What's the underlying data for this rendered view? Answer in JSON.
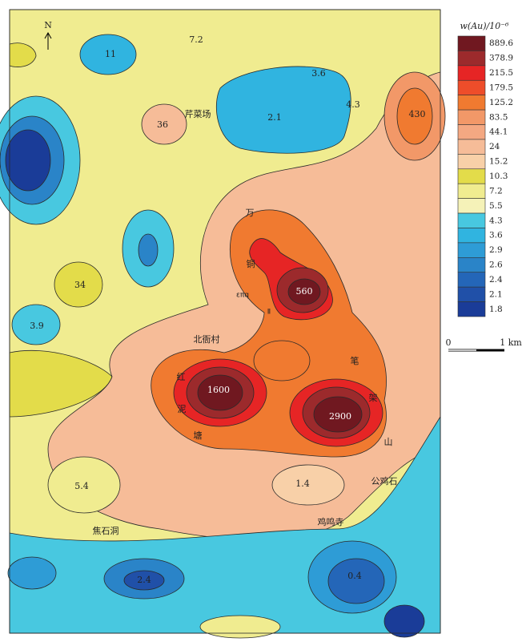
{
  "legend": {
    "title": "w(Au)/10⁻⁶",
    "items": [
      {
        "label": "889.6",
        "color": "#701820"
      },
      {
        "label": "378.9",
        "color": "#9c2a2c"
      },
      {
        "label": "215.5",
        "color": "#e62525"
      },
      {
        "label": "179.5",
        "color": "#ee4d2a"
      },
      {
        "label": "125.2",
        "color": "#f07a30"
      },
      {
        "label": "83.5",
        "color": "#f29868"
      },
      {
        "label": "44.1",
        "color": "#f4a882"
      },
      {
        "label": "24",
        "color": "#f6bc98"
      },
      {
        "label": "15.2",
        "color": "#f8d0a8"
      },
      {
        "label": "10.3",
        "color": "#e3dc4a"
      },
      {
        "label": "7.2",
        "color": "#f0ec90"
      },
      {
        "label": "5.5",
        "color": "#f5f2b8"
      },
      {
        "label": "4.3",
        "color": "#48c8e0"
      },
      {
        "label": "3.6",
        "color": "#30b4e0"
      },
      {
        "label": "2.9",
        "color": "#2e9cd6"
      },
      {
        "label": "2.6",
        "color": "#2a84c8"
      },
      {
        "label": "2.4",
        "color": "#2466b8"
      },
      {
        "label": "2.1",
        "color": "#2050a8"
      },
      {
        "label": "1.8",
        "color": "#1a3c98"
      }
    ]
  },
  "scale": {
    "start": "0",
    "end": "1 km"
  },
  "map": {
    "north": "N",
    "contour_labels": [
      "7.2",
      "11",
      "3.6",
      "2.1",
      "4.3",
      "430",
      "36",
      "34",
      "3.9",
      "560",
      "1600",
      "2900",
      "5.4",
      "1.4",
      "2.4",
      "0.4"
    ],
    "places": [
      "芹菜场",
      "万",
      "铜",
      "επq",
      "Ⅱ",
      "北衙村",
      "笔",
      "架",
      "山",
      "红",
      "泥",
      "塘",
      "公鸡石",
      "鸡鸣寺",
      "焦石洞"
    ]
  }
}
